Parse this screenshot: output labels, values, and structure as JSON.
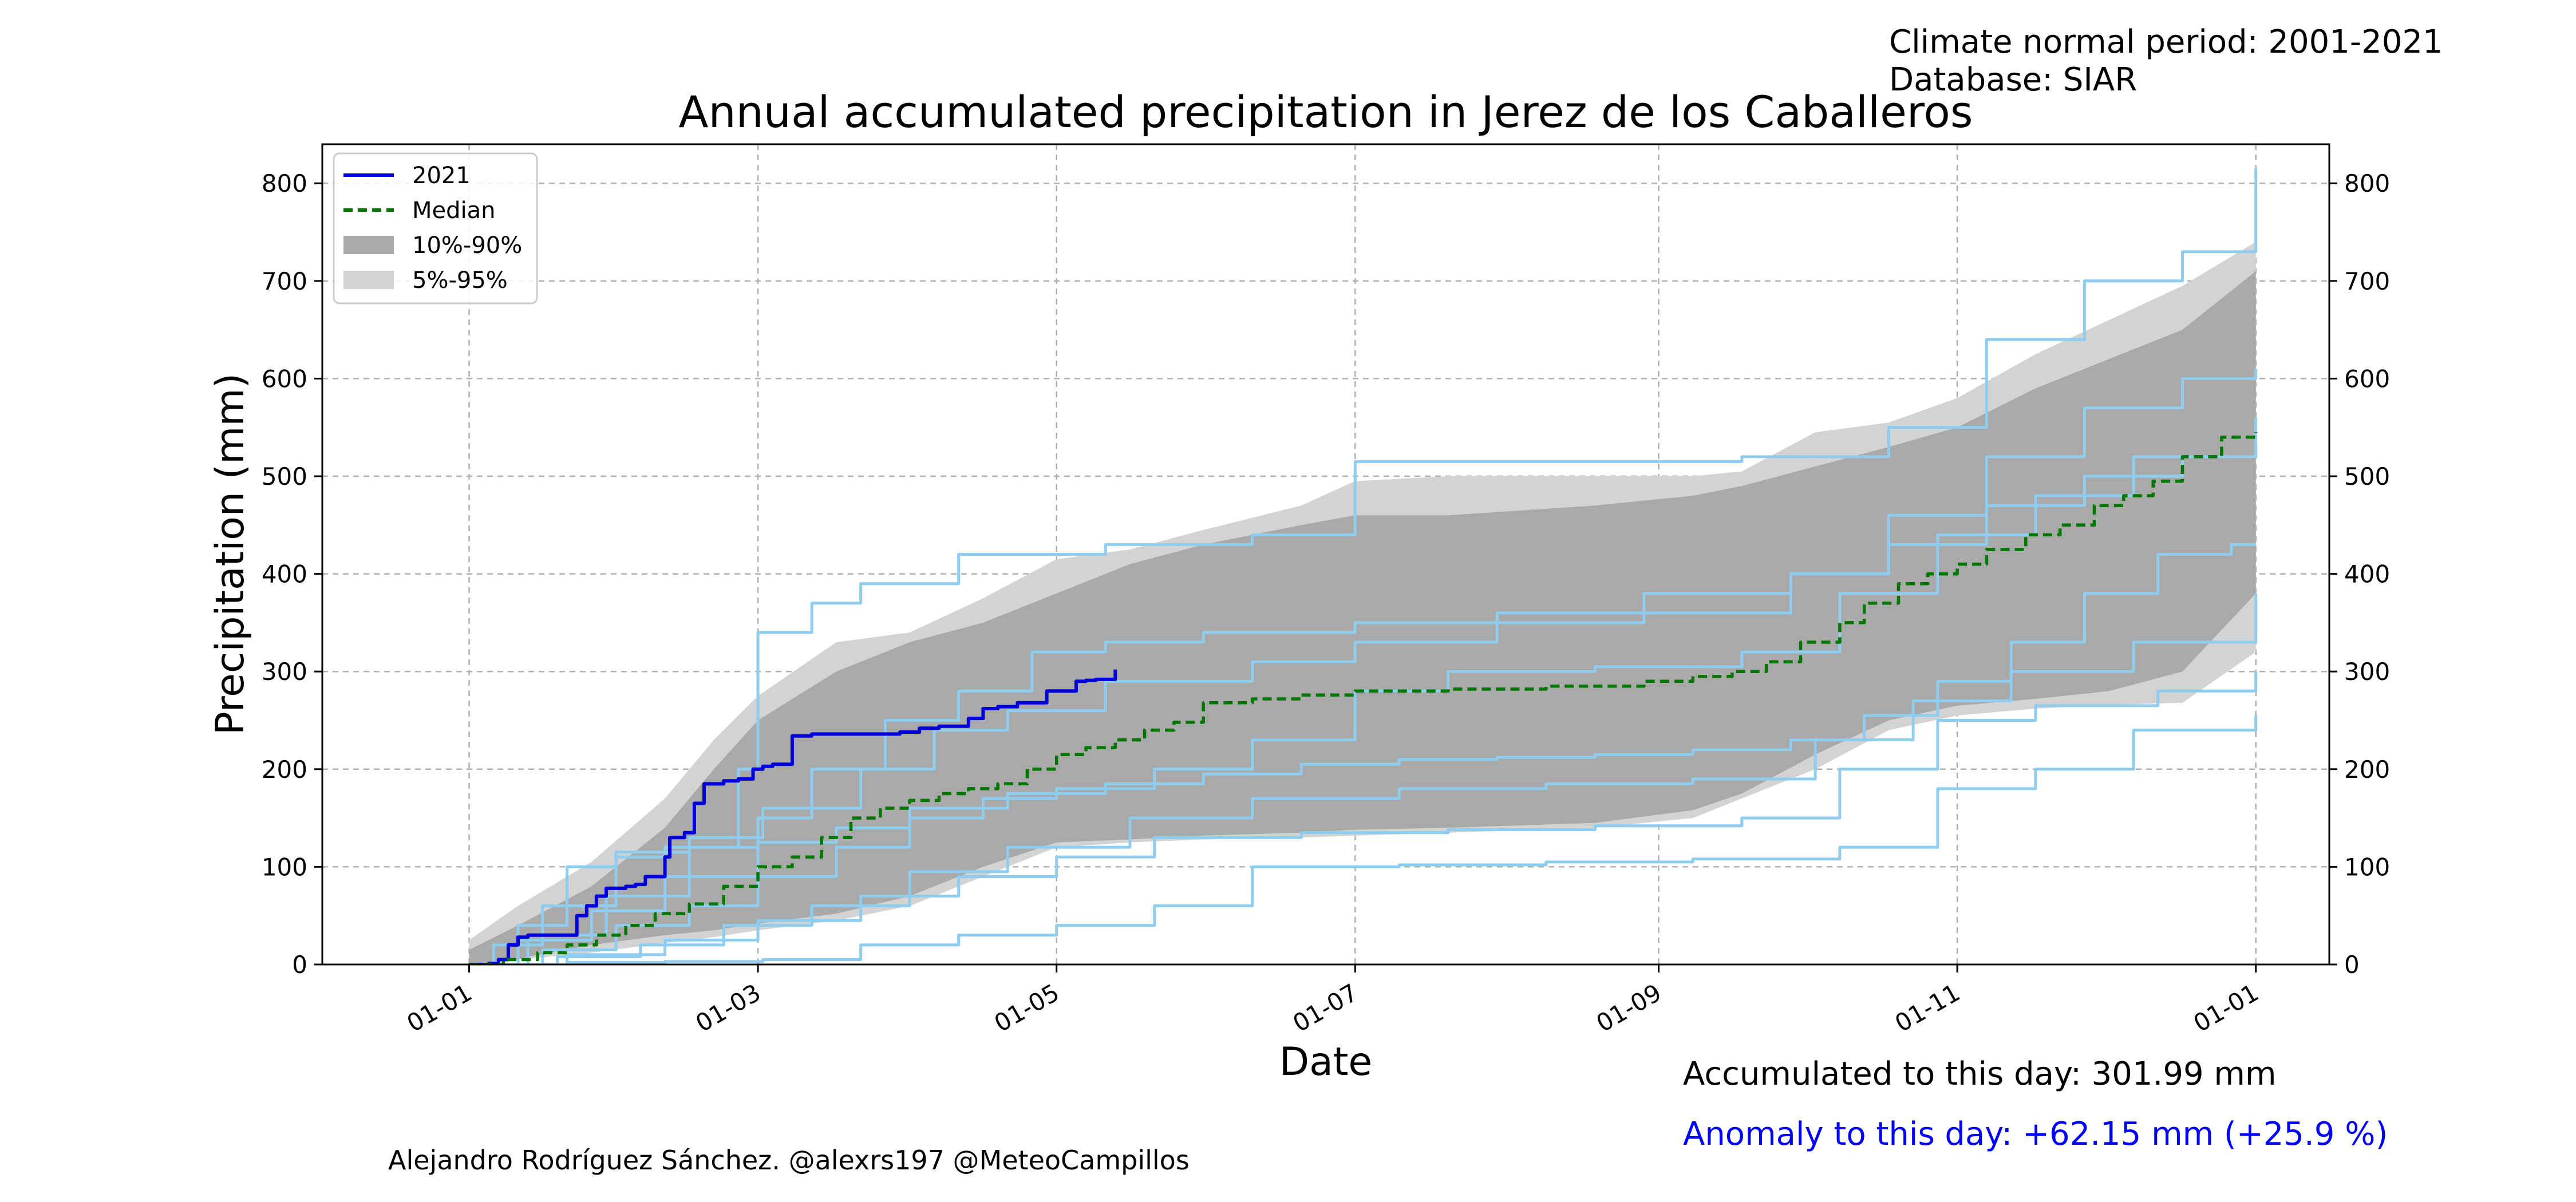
{
  "header": {
    "climate_normal": "Climate normal period: 2001-2021",
    "database": "Database: SIAR"
  },
  "footer": {
    "credits": "Alejandro Rodríguez Sánchez. @alexrs197 @MeteoCampillos",
    "accumulated": "Accumulated to this day: 301.99 mm",
    "anomaly": "Anomaly to this day: +62.15 mm (+25.9 %)"
  },
  "colors": {
    "current_year": "#0000dd",
    "median": "#007700",
    "band_10_90": "#a9a9a9",
    "band_5_95": "#d3d3d3",
    "past_years": "#8ecdf0",
    "anomaly_text": "#0000ff",
    "grid": "#b0b0b0"
  },
  "chart_data": {
    "type": "line",
    "title": "Annual accumulated precipitation in Jerez de los Caballeros",
    "xlabel": "Date",
    "ylabel": "Precipitation (mm)",
    "xlim": [
      -30,
      380
    ],
    "ylim": [
      0,
      840
    ],
    "x_units": "day of year",
    "x_ticks": [
      {
        "day": 0,
        "label": "01-01"
      },
      {
        "day": 59,
        "label": "01-03"
      },
      {
        "day": 120,
        "label": "01-05"
      },
      {
        "day": 181,
        "label": "01-07"
      },
      {
        "day": 243,
        "label": "01-09"
      },
      {
        "day": 304,
        "label": "01-11"
      },
      {
        "day": 365,
        "label": "01-01"
      }
    ],
    "y_ticks": [
      0,
      100,
      200,
      300,
      400,
      500,
      600,
      700,
      800
    ],
    "grid": true,
    "legend_position": "top-left",
    "legend": [
      {
        "label": "2021",
        "kind": "line",
        "color": "#0000dd"
      },
      {
        "label": "Median",
        "kind": "dashed",
        "color": "#007700"
      },
      {
        "label": "10%-90%",
        "kind": "patch",
        "color": "#a9a9a9"
      },
      {
        "label": "5%-95%",
        "kind": "patch",
        "color": "#d3d3d3"
      }
    ],
    "band_5_95": {
      "x": [
        0,
        10,
        25,
        40,
        50,
        59,
        75,
        90,
        105,
        120,
        135,
        150,
        170,
        181,
        200,
        230,
        250,
        260,
        275,
        290,
        304,
        320,
        335,
        350,
        365
      ],
      "lower": [
        0,
        5,
        12,
        22,
        28,
        35,
        45,
        60,
        90,
        120,
        125,
        128,
        130,
        132,
        135,
        140,
        150,
        170,
        200,
        240,
        255,
        262,
        266,
        268,
        320
      ],
      "upper": [
        25,
        60,
        105,
        170,
        230,
        275,
        330,
        340,
        375,
        415,
        425,
        445,
        470,
        495,
        500,
        500,
        500,
        505,
        545,
        555,
        580,
        625,
        660,
        695,
        740
      ]
    },
    "band_10_90": {
      "x": [
        0,
        10,
        25,
        40,
        50,
        59,
        75,
        90,
        105,
        120,
        135,
        150,
        170,
        181,
        200,
        230,
        250,
        260,
        275,
        290,
        304,
        320,
        335,
        350,
        365
      ],
      "lower": [
        0,
        6,
        20,
        30,
        35,
        42,
        52,
        70,
        100,
        125,
        128,
        132,
        135,
        138,
        140,
        145,
        158,
        175,
        215,
        250,
        265,
        272,
        280,
        300,
        380
      ],
      "upper": [
        15,
        40,
        80,
        140,
        200,
        250,
        300,
        330,
        350,
        380,
        410,
        430,
        450,
        460,
        460,
        470,
        480,
        490,
        510,
        530,
        550,
        590,
        620,
        650,
        710
      ]
    },
    "series": [
      {
        "name": "2021",
        "style": "solid",
        "x": [
          0,
          4,
          6,
          8,
          10,
          12,
          16,
          20,
          22,
          24,
          26,
          28,
          32,
          34,
          36,
          38,
          40,
          41,
          44,
          46,
          48,
          52,
          55,
          58,
          60,
          62,
          66,
          70,
          74,
          80,
          85,
          88,
          92,
          96,
          99,
          102,
          105,
          108,
          112,
          116,
          118,
          124,
          126,
          128,
          132
        ],
        "y": [
          0,
          1,
          5,
          20,
          28,
          30,
          30,
          30,
          50,
          60,
          70,
          78,
          80,
          82,
          90,
          90,
          110,
          130,
          135,
          165,
          185,
          188,
          190,
          200,
          203,
          205,
          234,
          236,
          236,
          236,
          236,
          238,
          242,
          244,
          244,
          252,
          262,
          264,
          268,
          268,
          280,
          290,
          291,
          292,
          302
        ]
      },
      {
        "name": "Median",
        "style": "dashed",
        "x": [
          0,
          7,
          14,
          20,
          26,
          32,
          38,
          45,
          52,
          59,
          66,
          72,
          78,
          84,
          90,
          96,
          102,
          108,
          114,
          120,
          126,
          132,
          138,
          144,
          150,
          160,
          170,
          181,
          200,
          220,
          240,
          250,
          258,
          265,
          272,
          280,
          285,
          292,
          298,
          304,
          310,
          318,
          325,
          332,
          338,
          344,
          350,
          358,
          365
        ],
        "y": [
          0,
          5,
          12,
          20,
          30,
          40,
          52,
          62,
          80,
          100,
          110,
          130,
          150,
          160,
          168,
          175,
          180,
          185,
          200,
          215,
          222,
          230,
          240,
          248,
          268,
          272,
          276,
          280,
          282,
          285,
          290,
          295,
          300,
          310,
          330,
          350,
          370,
          390,
          400,
          410,
          425,
          440,
          450,
          470,
          480,
          495,
          520,
          540,
          545
        ]
      }
    ],
    "past_years": [
      {
        "x": [
          0,
          10,
          20,
          30,
          45,
          59,
          75,
          90,
          110,
          130,
          150,
          170,
          190,
          210,
          230,
          250,
          270,
          285,
          300,
          315,
          330,
          345,
          360,
          365
        ],
        "y": [
          0,
          40,
          100,
          115,
          120,
          125,
          140,
          160,
          175,
          185,
          195,
          205,
          210,
          212,
          215,
          220,
          230,
          255,
          290,
          330,
          380,
          420,
          430,
          430
        ]
      },
      {
        "x": [
          0,
          5,
          15,
          30,
          40,
          55,
          59,
          70,
          80,
          100,
          130,
          160,
          181,
          220,
          260,
          290,
          310,
          330,
          350,
          365
        ],
        "y": [
          0,
          20,
          60,
          110,
          120,
          200,
          340,
          370,
          390,
          420,
          430,
          440,
          515,
          515,
          520,
          550,
          640,
          700,
          730,
          815
        ]
      },
      {
        "x": [
          0,
          20,
          40,
          60,
          80,
          100,
          120,
          140,
          160,
          190,
          220,
          250,
          280,
          300,
          320,
          340,
          365
        ],
        "y": [
          0,
          2,
          3,
          5,
          20,
          30,
          40,
          60,
          100,
          102,
          105,
          108,
          120,
          180,
          200,
          240,
          255
        ]
      },
      {
        "x": [
          0,
          15,
          30,
          45,
          59,
          75,
          90,
          105,
          120,
          140,
          160,
          181,
          200,
          230,
          260,
          280,
          300,
          320,
          340,
          365
        ],
        "y": [
          0,
          15,
          40,
          60,
          90,
          120,
          150,
          170,
          180,
          200,
          230,
          280,
          300,
          305,
          320,
          380,
          440,
          480,
          520,
          560
        ]
      },
      {
        "x": [
          0,
          10,
          25,
          40,
          59,
          70,
          85,
          100,
          115,
          130,
          150,
          181,
          210,
          240,
          270,
          290,
          310,
          330,
          350,
          365
        ],
        "y": [
          0,
          25,
          55,
          90,
          150,
          200,
          250,
          280,
          320,
          330,
          340,
          350,
          360,
          380,
          400,
          460,
          520,
          570,
          600,
          610
        ]
      },
      {
        "x": [
          0,
          20,
          40,
          59,
          80,
          100,
          120,
          140,
          170,
          200,
          230,
          260,
          280,
          300,
          320,
          345,
          365
        ],
        "y": [
          0,
          10,
          25,
          45,
          70,
          90,
          110,
          130,
          135,
          138,
          142,
          150,
          200,
          250,
          265,
          280,
          300
        ]
      },
      {
        "x": [
          0,
          12,
          28,
          45,
          60,
          80,
          95,
          110,
          130,
          160,
          181,
          210,
          240,
          270,
          290,
          310,
          330,
          350,
          365
        ],
        "y": [
          0,
          30,
          70,
          130,
          160,
          200,
          240,
          260,
          290,
          310,
          330,
          350,
          360,
          400,
          430,
          470,
          500,
          520,
          530
        ]
      },
      {
        "x": [
          0,
          18,
          35,
          52,
          70,
          90,
          110,
          135,
          160,
          190,
          220,
          250,
          275,
          295,
          315,
          340,
          365
        ],
        "y": [
          0,
          8,
          20,
          40,
          60,
          95,
          120,
          150,
          170,
          180,
          185,
          190,
          230,
          270,
          300,
          330,
          380
        ]
      }
    ]
  }
}
